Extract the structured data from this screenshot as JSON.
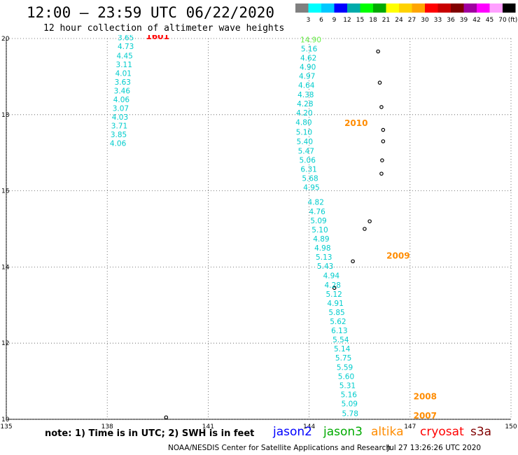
{
  "header": {
    "title": "12:00 – 23:59 UTC 06/22/2020",
    "subtitle": "12 hour collection of altimeter wave heights"
  },
  "scale": {
    "colors": [
      "#808080",
      "#00ffff",
      "#00c8ff",
      "#0000ff",
      "#00aaaa",
      "#00ff00",
      "#00aa00",
      "#ffff00",
      "#ffd200",
      "#ffa500",
      "#ff0000",
      "#c80000",
      "#800000",
      "#a000a0",
      "#ff00ff",
      "#ffa0ff",
      "#000000"
    ],
    "labels": [
      "3",
      "6",
      "9",
      "12",
      "15",
      "18",
      "21",
      "24",
      "27",
      "30",
      "33",
      "36",
      "39",
      "42",
      "45",
      "70"
    ],
    "unit": "(ft)"
  },
  "chart_data": {
    "type": "scatter",
    "x_axis": {
      "range": [
        135,
        150
      ],
      "ticks": [
        "135",
        "138",
        "141",
        "144",
        "147",
        "150"
      ]
    },
    "y_axis": {
      "range": [
        10,
        20
      ],
      "ticks": [
        "10",
        "12",
        "14",
        "16",
        "18",
        "20"
      ]
    },
    "grid": true,
    "tracks": [
      {
        "name": "1601",
        "label_color": "#ff0000",
        "label_lon": 139.15,
        "label_lat": 19.98,
        "points": [
          {
            "lon": 138.55,
            "lat": 19.95,
            "v": "3.65"
          },
          {
            "lon": 138.55,
            "lat": 19.72,
            "v": "4.73"
          },
          {
            "lon": 138.52,
            "lat": 19.48,
            "v": "4.45"
          },
          {
            "lon": 138.5,
            "lat": 19.25,
            "v": "3.11"
          },
          {
            "lon": 138.48,
            "lat": 19.02,
            "v": "4.01"
          },
          {
            "lon": 138.46,
            "lat": 18.79,
            "v": "3.63"
          },
          {
            "lon": 138.44,
            "lat": 18.56,
            "v": "3.46"
          },
          {
            "lon": 138.42,
            "lat": 18.33,
            "v": "4.06"
          },
          {
            "lon": 138.4,
            "lat": 18.1,
            "v": "3.07"
          },
          {
            "lon": 138.38,
            "lat": 17.87,
            "v": "4.03"
          },
          {
            "lon": 138.36,
            "lat": 17.64,
            "v": "3.71"
          },
          {
            "lon": 138.34,
            "lat": 17.41,
            "v": "3.85"
          },
          {
            "lon": 138.32,
            "lat": 17.18,
            "v": "4.06"
          }
        ]
      },
      {
        "name": "2010",
        "label_color": "#ff8c00",
        "label_lon": 145.05,
        "label_lat": 17.7,
        "points": [
          {
            "lon": 144.05,
            "lat": 19.9,
            "v": "14.90",
            "c": "#66ee44"
          },
          {
            "lon": 144.0,
            "lat": 19.66,
            "v": "5.16"
          },
          {
            "lon": 143.98,
            "lat": 19.42,
            "v": "4.62"
          },
          {
            "lon": 143.96,
            "lat": 19.18,
            "v": "4.90"
          },
          {
            "lon": 143.94,
            "lat": 18.94,
            "v": "4.97"
          },
          {
            "lon": 143.92,
            "lat": 18.7,
            "v": "4.64"
          },
          {
            "lon": 143.9,
            "lat": 18.46,
            "v": "4.38"
          },
          {
            "lon": 143.88,
            "lat": 18.22,
            "v": "4.28"
          },
          {
            "lon": 143.86,
            "lat": 17.98,
            "v": "4.20"
          },
          {
            "lon": 143.84,
            "lat": 17.73,
            "v": "4.80"
          },
          {
            "lon": 143.85,
            "lat": 17.47,
            "v": "5.10"
          },
          {
            "lon": 143.87,
            "lat": 17.22,
            "v": "5.40"
          },
          {
            "lon": 143.91,
            "lat": 16.98,
            "v": "5.47"
          },
          {
            "lon": 143.95,
            "lat": 16.74,
            "v": "5.06"
          },
          {
            "lon": 143.99,
            "lat": 16.5,
            "v": "6.31"
          },
          {
            "lon": 144.03,
            "lat": 16.26,
            "v": "5.68"
          },
          {
            "lon": 144.07,
            "lat": 16.02,
            "v": "4.95"
          }
        ]
      },
      {
        "name": "2009",
        "label_color": "#ff8c00",
        "label_lon": 146.3,
        "label_lat": 14.22,
        "points": [
          {
            "lon": 144.2,
            "lat": 15.63,
            "v": "4.82"
          },
          {
            "lon": 144.24,
            "lat": 15.39,
            "v": "4.76"
          },
          {
            "lon": 144.28,
            "lat": 15.15,
            "v": "5.09"
          },
          {
            "lon": 144.32,
            "lat": 14.91,
            "v": "5.10"
          },
          {
            "lon": 144.36,
            "lat": 14.67,
            "v": "4.89"
          },
          {
            "lon": 144.4,
            "lat": 14.43,
            "v": "4.98"
          },
          {
            "lon": 144.44,
            "lat": 14.19,
            "v": "5.13"
          },
          {
            "lon": 144.48,
            "lat": 13.95,
            "v": "5.43"
          }
        ]
      },
      {
        "name": "2008",
        "label_color": "#ff8c00",
        "label_lon": 147.1,
        "label_lat": 10.52,
        "points": [
          {
            "lon": 144.66,
            "lat": 13.7,
            "v": "4.94"
          },
          {
            "lon": 144.7,
            "lat": 13.46,
            "v": "4.28"
          },
          {
            "lon": 144.74,
            "lat": 13.22,
            "v": "5.12"
          },
          {
            "lon": 144.78,
            "lat": 12.98,
            "v": "4.91"
          },
          {
            "lon": 144.82,
            "lat": 12.74,
            "v": "5.85"
          },
          {
            "lon": 144.86,
            "lat": 12.5,
            "v": "5.62"
          },
          {
            "lon": 144.9,
            "lat": 12.26,
            "v": "6.13"
          },
          {
            "lon": 144.94,
            "lat": 12.02,
            "v": "5.54"
          },
          {
            "lon": 144.98,
            "lat": 11.78,
            "v": "5.14"
          },
          {
            "lon": 145.02,
            "lat": 11.54,
            "v": "5.75"
          },
          {
            "lon": 145.06,
            "lat": 11.3,
            "v": "5.59"
          },
          {
            "lon": 145.1,
            "lat": 11.06,
            "v": "5.60"
          },
          {
            "lon": 145.14,
            "lat": 10.82,
            "v": "5.31"
          },
          {
            "lon": 145.18,
            "lat": 10.58,
            "v": "5.16"
          },
          {
            "lon": 145.2,
            "lat": 10.34,
            "v": "5.09"
          }
        ]
      },
      {
        "name": "2007",
        "label_color": "#ff8c00",
        "label_lon": 147.1,
        "label_lat": 10.02,
        "points": [
          {
            "lon": 145.22,
            "lat": 10.08,
            "v": "5.78"
          }
        ]
      }
    ],
    "islands": [
      {
        "lon": 146.05,
        "lat": 19.66
      },
      {
        "lon": 146.1,
        "lat": 18.84
      },
      {
        "lon": 146.15,
        "lat": 18.2
      },
      {
        "lon": 146.2,
        "lat": 17.6
      },
      {
        "lon": 146.2,
        "lat": 17.3
      },
      {
        "lon": 146.17,
        "lat": 16.8
      },
      {
        "lon": 146.15,
        "lat": 16.45
      },
      {
        "lon": 145.8,
        "lat": 15.2
      },
      {
        "lon": 145.65,
        "lat": 15.0
      },
      {
        "lon": 145.3,
        "lat": 14.15
      },
      {
        "lon": 144.75,
        "lat": 13.45
      },
      {
        "lon": 139.75,
        "lat": 10.05
      }
    ]
  },
  "footer": {
    "note": "note: 1) Time is in UTC; 2) SWH is in feet",
    "satellites": [
      {
        "label": "jason2",
        "color": "#0000ff"
      },
      {
        "label": "jason3",
        "color": "#00aa00"
      },
      {
        "label": "altika",
        "color": "#ff8c00"
      },
      {
        "label": "cryosat",
        "color": "#ff0000"
      },
      {
        "label": "s3a",
        "color": "#800000"
      }
    ],
    "credit": "NOAA/NESDIS Center for Satellite Applications and Research",
    "timestamp": "Jul 27 13:26:26 UTC 2020"
  }
}
